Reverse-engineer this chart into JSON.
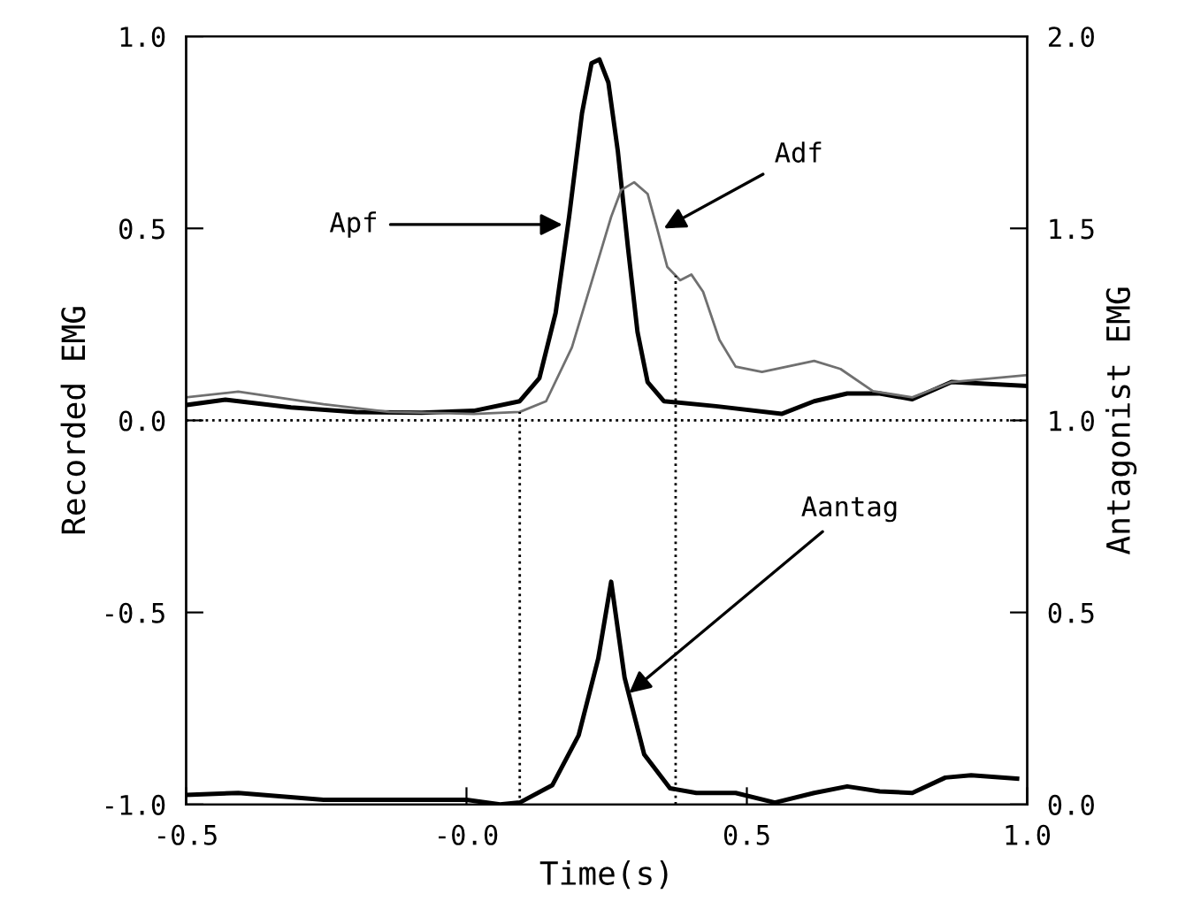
{
  "chart_data": {
    "type": "line",
    "xlabel": "Time(s)",
    "ylabel": "Recorded EMG",
    "y2label": "Antagonist EMG",
    "xlim": [
      -0.5,
      1.0
    ],
    "xticks": [
      {
        "value": -0.5,
        "label": "-0.5"
      },
      {
        "value": 0,
        "label": "-0.0"
      },
      {
        "value": 0.5,
        "label": "0.5"
      },
      {
        "value": 1.0,
        "label": "1.0"
      }
    ],
    "ylim": [
      -1.0,
      1.0
    ],
    "yticks": [
      {
        "value": -1.0,
        "label": "-1.0"
      },
      {
        "value": -0.5,
        "label": "-0.5"
      },
      {
        "value": 0,
        "label": "0.0"
      },
      {
        "value": 0.5,
        "label": "0.5"
      },
      {
        "value": 1.0,
        "label": "1.0"
      }
    ],
    "y2lim": [
      0,
      2.0
    ],
    "y2ticks": [
      {
        "value": 0,
        "label": "0.0"
      },
      {
        "value": 0.5,
        "label": "0.5"
      },
      {
        "value": 1.0,
        "label": "1.0"
      },
      {
        "value": 1.5,
        "label": "1.5"
      },
      {
        "value": 2.0,
        "label": "2.0"
      }
    ],
    "grid": false,
    "legend": false,
    "marker": "none",
    "line_style": "solid",
    "series": [
      {
        "color": "#000000",
        "x": [
          -0.5,
          -0.43,
          -0.313,
          -0.197,
          -0.08,
          0.013,
          0.095,
          0.13,
          0.159,
          0.183,
          0.206,
          0.223,
          0.237,
          0.253,
          0.27,
          0.288,
          0.305,
          0.323,
          0.352,
          0.445,
          0.562,
          0.62,
          0.679,
          0.737,
          0.795,
          0.865,
          1.0
        ],
        "values": [
          0.04,
          0.054,
          0.034,
          0.022,
          0.02,
          0.025,
          0.05,
          0.11,
          0.28,
          0.53,
          0.8,
          0.93,
          0.94,
          0.88,
          0.7,
          0.45,
          0.23,
          0.1,
          0.05,
          0.037,
          0.017,
          0.05,
          0.07,
          0.07,
          0.055,
          0.1,
          0.09
        ]
      },
      {
        "color": "#707070",
        "x": [
          -0.5,
          -0.407,
          -0.255,
          -0.138,
          0.013,
          0.095,
          0.142,
          0.188,
          0.223,
          0.258,
          0.276,
          0.299,
          0.323,
          0.34,
          0.358,
          0.381,
          0.401,
          0.422,
          0.451,
          0.48,
          0.527,
          0.62,
          0.667,
          0.725,
          0.795,
          0.865,
          1.0
        ],
        "values": [
          0.06,
          0.075,
          0.042,
          0.022,
          0.017,
          0.022,
          0.05,
          0.19,
          0.36,
          0.53,
          0.6,
          0.62,
          0.59,
          0.5,
          0.4,
          0.365,
          0.38,
          0.335,
          0.21,
          0.14,
          0.126,
          0.155,
          0.134,
          0.076,
          0.06,
          0.1,
          0.118
        ]
      },
      {
        "color": "#000000",
        "axis": "y2",
        "x": [
          -0.5,
          -0.407,
          -0.255,
          0.0,
          0.06,
          0.095,
          0.153,
          0.2,
          0.235,
          0.258,
          0.282,
          0.317,
          0.363,
          0.41,
          0.48,
          0.55,
          0.62,
          0.679,
          0.737,
          0.795,
          0.854,
          0.9,
          0.982
        ],
        "values": [
          0.025,
          0.03,
          0.012,
          0.012,
          0.0,
          0.005,
          0.05,
          0.18,
          0.38,
          0.58,
          0.33,
          0.13,
          0.042,
          0.03,
          0.03,
          0.005,
          0.03,
          0.047,
          0.034,
          0.03,
          0.07,
          0.076,
          0.067
        ]
      }
    ],
    "ref_lines": [
      {
        "axis": "y",
        "value": 0,
        "line_style": "dotted"
      },
      {
        "axis": "x",
        "value": 0.095,
        "line_style": "dotted"
      },
      {
        "axis": "x",
        "value": 0.373,
        "line_style": "dotted"
      }
    ],
    "annotations": [
      {
        "text": "Apf",
        "x": 0.171,
        "y": 0.51
      },
      {
        "text": "Adf",
        "x": 0.352,
        "y": 0.5
      },
      {
        "text": "Aantag",
        "x": 0.29,
        "y": -0.71
      }
    ]
  }
}
